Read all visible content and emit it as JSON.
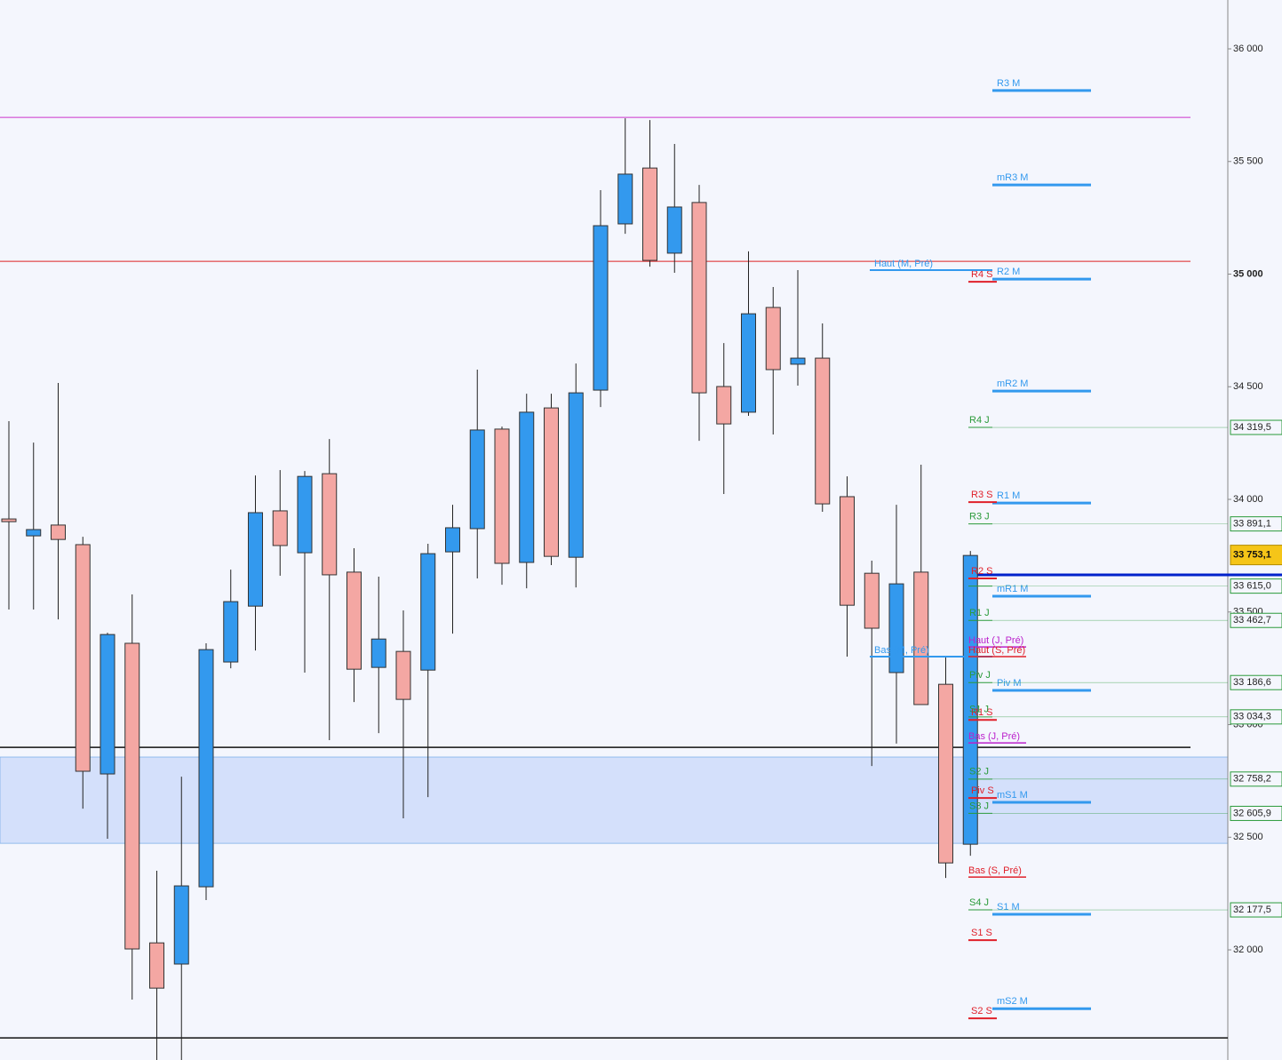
{
  "chart_data": {
    "type": "candlestick",
    "ylim": [
      31511,
      36217
    ],
    "yticks": [
      {
        "value": 32000,
        "label": "32 000"
      },
      {
        "value": 32500,
        "label": "32 500"
      },
      {
        "value": 33000,
        "label": "33 000"
      },
      {
        "value": 33500,
        "label": "33 500"
      },
      {
        "value": 34000,
        "label": "34 000"
      },
      {
        "value": 34500,
        "label": "34 500"
      },
      {
        "value": 35000,
        "label": "35 000"
      },
      {
        "value": 35500,
        "label": "35 500"
      },
      {
        "value": 36000,
        "label": "36 000"
      }
    ],
    "up_color": "#3399ee",
    "down_color": "#f4a7a3",
    "candles": {
      "open": [
        33913,
        33838,
        33886,
        33799,
        32781,
        33361,
        32031,
        31937,
        32280,
        33278,
        33526,
        33949,
        33763,
        34114,
        33677,
        33254,
        33325,
        33242,
        33767,
        33870,
        34312,
        33720,
        34406,
        33743,
        34485,
        35223,
        35471,
        35093,
        35318,
        34501,
        34387,
        34852,
        34600,
        34627,
        34012,
        33672,
        33231,
        33677,
        33179,
        32469
      ],
      "high": [
        34347,
        34252,
        34517,
        33834,
        33408,
        33578,
        32351,
        32769,
        33361,
        33688,
        34106,
        34130,
        34126,
        34268,
        33783,
        33657,
        33507,
        33803,
        33976,
        34576,
        34323,
        34469,
        34469,
        34603,
        35373,
        35692,
        35684,
        35578,
        35396,
        34694,
        35101,
        34943,
        35018,
        34781,
        34102,
        33728,
        33976,
        34154,
        33298,
        33771
      ],
      "low": [
        33511,
        33511,
        33467,
        32627,
        32493,
        31779,
        31511,
        31511,
        32221,
        33250,
        33329,
        33661,
        33231,
        32931,
        33100,
        32962,
        32584,
        32678,
        33404,
        33649,
        33621,
        33605,
        33708,
        33609,
        34410,
        35179,
        35033,
        35006,
        34260,
        34024,
        34371,
        34288,
        34505,
        33945,
        33302,
        32816,
        32916,
        33089,
        32319,
        32418
      ],
      "close": [
        33901,
        33866,
        33822,
        32793,
        33400,
        32004,
        31830,
        32284,
        33333,
        33546,
        33941,
        33795,
        34102,
        33665,
        33246,
        33380,
        33112,
        33759,
        33874,
        34308,
        33716,
        34387,
        33747,
        34473,
        35215,
        35444,
        35061,
        35298,
        34473,
        34335,
        34824,
        34576,
        34627,
        33980,
        33530,
        33428,
        33625,
        33089,
        32386,
        33751
      ]
    },
    "hlines": [
      {
        "value": 35696,
        "color": "#cc33cc"
      },
      {
        "value": 35057,
        "color": "#dd2222"
      },
      {
        "value": 33665,
        "color": "#0022cc"
      },
      {
        "value": 32899,
        "color": "#111111"
      },
      {
        "value": 31609,
        "color": "#111111"
      }
    ],
    "band": {
      "from": 32473,
      "to": 32856,
      "color": "#d4e0fb"
    },
    "levels_m": {
      "color": "#3399ee",
      "items": [
        {
          "label": "R3 M",
          "value": 35815
        },
        {
          "label": "mR3 M",
          "value": 35396
        },
        {
          "label": "R2 M",
          "value": 34978
        },
        {
          "label": "mR2 M",
          "value": 34481
        },
        {
          "label": "R1 M",
          "value": 33984
        },
        {
          "label": "mR1 M",
          "value": 33570
        },
        {
          "label": "Piv M",
          "value": 33152
        },
        {
          "label": "mS1 M",
          "value": 32655
        },
        {
          "label": "S1 M",
          "value": 32158
        },
        {
          "label": "mS2 M",
          "value": 31739
        }
      ]
    },
    "levels_s": {
      "color": "#e0202a",
      "items": [
        {
          "label": "R4 S",
          "value": 34966
        },
        {
          "label": "R3 S",
          "value": 33988
        },
        {
          "label": "R2 S",
          "value": 33649
        },
        {
          "label": "R1 S",
          "value": 33021
        },
        {
          "label": "Piv S",
          "value": 32674
        },
        {
          "label": "S1 S",
          "value": 32043
        },
        {
          "label": "S2 S",
          "value": 31696
        }
      ]
    },
    "levels_j": {
      "color": "#2a9a3a",
      "items": [
        {
          "label": "R4 J",
          "value": 34319.5,
          "value_label": "34 319,5"
        },
        {
          "label": "R3 J",
          "value": 33891.1,
          "value_label": "33 891,1"
        },
        {
          "value": 33615.0,
          "value_label": "33 615,0"
        },
        {
          "label": "R1 J",
          "value": 33462.7,
          "value_label": "33 462,7"
        },
        {
          "label": "Piv J",
          "value": 33186.6,
          "value_label": "33 186,6"
        },
        {
          "label": "S1 J",
          "value": 33034.3,
          "value_label": "33 034,3"
        },
        {
          "label": "S2 J",
          "value": 32758.2,
          "value_label": "32 758,2"
        },
        {
          "label": "S3 J",
          "value": 32605.9,
          "value_label": "32 605,9"
        },
        {
          "label": "S4 J",
          "value": 32177.5,
          "value_label": "32 177,5"
        }
      ]
    },
    "prev_levels": [
      {
        "label": "Haut (M, Pré)",
        "value": 35018,
        "color": "#3399ee"
      },
      {
        "label": "Bas (M, Pré)",
        "value": 33302,
        "color": "#3399ee"
      },
      {
        "label": "Haut (J, Pré)",
        "value": 33345,
        "color": "#bb22cc"
      },
      {
        "label": "Haut (S, Pré)",
        "value": 33302,
        "color": "#e0202a"
      },
      {
        "label": "Bas (J, Pré)",
        "value": 32919,
        "color": "#bb22cc"
      },
      {
        "label": "Bas (S, Pré)",
        "value": 32323,
        "color": "#e0202a"
      }
    ],
    "last_price": {
      "value": 33753.1,
      "label": "33 753,1",
      "color": "#f5c518"
    }
  }
}
